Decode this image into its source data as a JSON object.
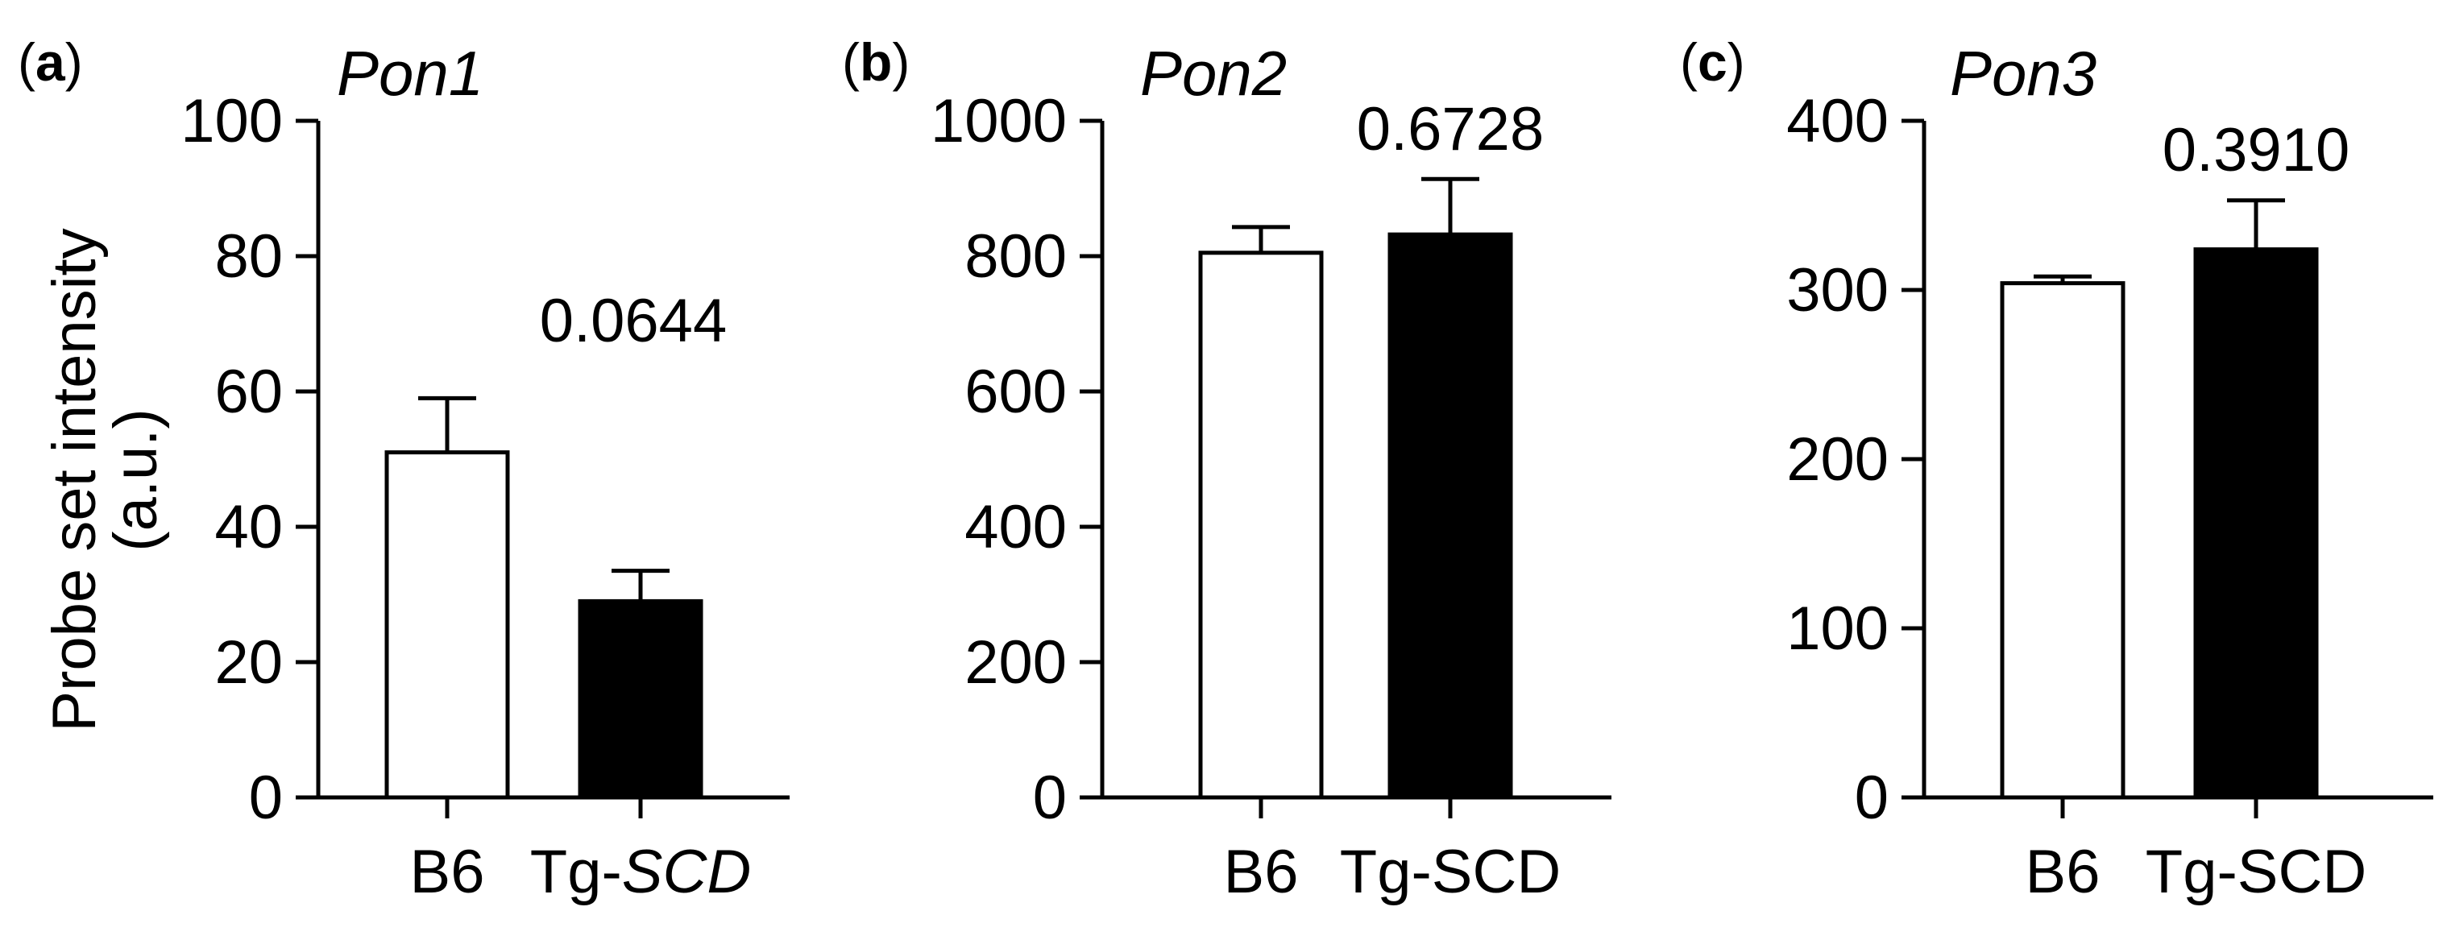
{
  "chart_data": [
    {
      "panel_label": "(a)",
      "panel_letter": "a",
      "type": "bar",
      "title": "Pon1",
      "ylabel_line1": "Probe set intensity",
      "ylabel_line2": "(a.u.)",
      "xlabel": "",
      "categories": [
        "B6",
        "Tg-"
      ],
      "category_suffix_italic": [
        "",
        "SCD"
      ],
      "ylim": [
        0,
        100
      ],
      "yticks": [
        0,
        20,
        40,
        60,
        80,
        100
      ],
      "values": [
        51,
        29
      ],
      "errors": [
        8,
        4.5
      ],
      "fill_colors": [
        "#ffffff",
        "#000000"
      ],
      "p_value": "0.0644"
    },
    {
      "panel_label": "(b)",
      "panel_letter": "b",
      "type": "bar",
      "title": "Pon2",
      "xlabel": "",
      "ylabel": "",
      "categories": [
        "B6",
        "Tg-SCD"
      ],
      "ylim": [
        0,
        1000
      ],
      "yticks": [
        0,
        200,
        400,
        600,
        800,
        1000
      ],
      "values": [
        805,
        832
      ],
      "errors": [
        38,
        82
      ],
      "fill_colors": [
        "#ffffff",
        "#000000"
      ],
      "p_value": "0.6728"
    },
    {
      "panel_label": "(c)",
      "panel_letter": "c",
      "type": "bar",
      "title": "Pon3",
      "xlabel": "",
      "ylabel": "",
      "categories": [
        "B6",
        "Tg-SCD"
      ],
      "ylim": [
        0,
        400
      ],
      "yticks": [
        0,
        100,
        200,
        300,
        400
      ],
      "values": [
        304,
        324
      ],
      "errors": [
        4,
        29
      ],
      "fill_colors": [
        "#ffffff",
        "#000000"
      ],
      "p_value": "0.3910"
    }
  ]
}
